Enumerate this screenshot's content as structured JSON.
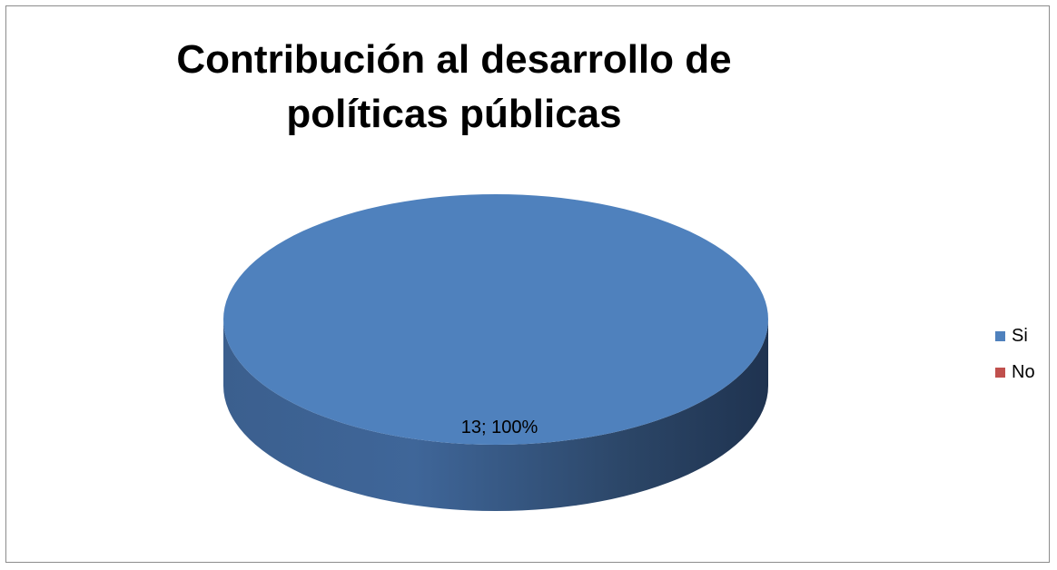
{
  "chart_data": {
    "type": "pie",
    "title": "Contribución al desarrollo de políticas públicas",
    "categories": [
      "Si",
      "No"
    ],
    "values": [
      13,
      0
    ],
    "percentages": [
      100,
      0
    ],
    "data_labels": [
      "13; 100%"
    ],
    "colors": [
      "#4f81bd",
      "#c0504d"
    ],
    "legend_position": "right",
    "style": "3d-pie"
  }
}
